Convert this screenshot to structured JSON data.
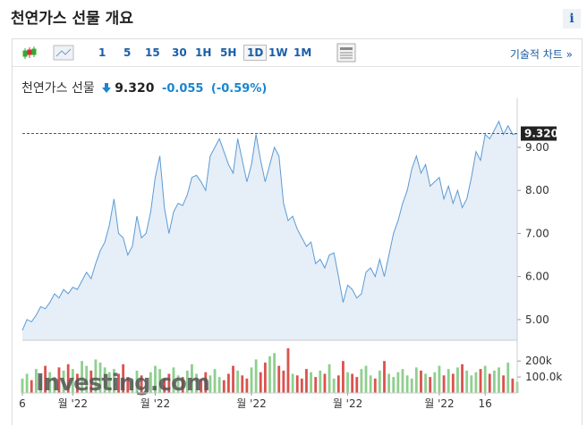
{
  "header": {
    "title": "천연가스 선물 개요",
    "info": "i"
  },
  "toolbar": {
    "intervals": [
      "1",
      "5",
      "15",
      "30",
      "1H",
      "5H",
      "1D",
      "1W",
      "1M"
    ],
    "active": "1D",
    "link": "기술적 차트 »"
  },
  "quote": {
    "name": "천연가스 선물",
    "price": "9.320",
    "change": "-0.055",
    "change_percent": "(-0.59%)"
  },
  "chart_data": {
    "type": "area",
    "color": "#5b9bd5",
    "fill": "#e6eef7",
    "values": [
      4.75,
      5.0,
      4.95,
      5.1,
      5.3,
      5.25,
      5.4,
      5.6,
      5.5,
      5.7,
      5.6,
      5.75,
      5.7,
      5.9,
      6.1,
      5.95,
      6.3,
      6.6,
      6.8,
      7.2,
      7.8,
      7.0,
      6.9,
      6.5,
      6.7,
      7.4,
      6.9,
      7.0,
      7.5,
      8.3,
      8.8,
      7.6,
      7.0,
      7.5,
      7.7,
      7.65,
      7.9,
      8.3,
      8.35,
      8.2,
      8.0,
      8.8,
      9.0,
      9.2,
      8.9,
      8.6,
      8.4,
      9.2,
      8.7,
      8.2,
      8.6,
      9.3,
      8.7,
      8.2,
      8.6,
      9.0,
      8.8,
      7.7,
      7.3,
      7.4,
      7.1,
      6.9,
      6.7,
      6.8,
      6.3,
      6.4,
      6.2,
      6.5,
      6.55,
      6.0,
      5.4,
      5.8,
      5.7,
      5.5,
      5.6,
      6.1,
      6.2,
      6.0,
      6.4,
      6.0,
      6.5,
      7.0,
      7.3,
      7.7,
      8.0,
      8.5,
      8.8,
      8.4,
      8.6,
      8.1,
      8.2,
      8.3,
      7.8,
      8.1,
      7.7,
      8.0,
      7.6,
      7.8,
      8.3,
      8.9,
      8.7,
      9.3,
      9.2,
      9.4,
      9.6,
      9.3,
      9.5,
      9.3,
      9.32
    ],
    "xlim": [
      0,
      108
    ],
    "xticks": [
      {
        "value": 0,
        "label": "6"
      },
      {
        "value": 11,
        "label": "월 '22"
      },
      {
        "value": 29,
        "label": "월 '22"
      },
      {
        "value": 50,
        "label": "월 '22"
      },
      {
        "value": 71,
        "label": "월 '22"
      },
      {
        "value": 91,
        "label": "월 '22"
      },
      {
        "value": 101,
        "label": "16"
      }
    ],
    "ylim": [
      4.52,
      10.14
    ],
    "yticks": [
      {
        "value": 5,
        "label": "5.00"
      },
      {
        "value": 6,
        "label": "6.00"
      },
      {
        "value": 7,
        "label": "7.00"
      },
      {
        "value": 8,
        "label": "8.00"
      },
      {
        "value": 9,
        "label": "9.00"
      }
    ],
    "last_price": {
      "value": 9.32,
      "label": "9.320"
    },
    "volume": {
      "values": [
        90000,
        120000,
        80000,
        150000,
        110000,
        170000,
        130000,
        100000,
        160000,
        140000,
        180000,
        150000,
        120000,
        200000,
        170000,
        140000,
        210000,
        190000,
        160000,
        130000,
        150000,
        120000,
        180000,
        100000,
        90000,
        140000,
        110000,
        80000,
        130000,
        170000,
        150000,
        90000,
        120000,
        160000,
        110000,
        100000,
        140000,
        180000,
        120000,
        90000,
        130000,
        110000,
        150000,
        100000,
        80000,
        120000,
        170000,
        140000,
        110000,
        90000,
        160000,
        210000,
        130000,
        190000,
        230000,
        250000,
        170000,
        140000,
        280000,
        120000,
        110000,
        90000,
        150000,
        130000,
        100000,
        140000,
        120000,
        180000,
        90000,
        110000,
        200000,
        130000,
        120000,
        100000,
        150000,
        170000,
        110000,
        90000,
        140000,
        200000,
        120000,
        100000,
        130000,
        150000,
        110000,
        90000,
        160000,
        140000,
        120000,
        100000,
        130000,
        170000,
        110000,
        150000,
        120000,
        160000,
        180000,
        140000,
        110000,
        130000,
        150000,
        170000,
        120000,
        140000,
        160000,
        110000,
        190000,
        90000,
        70000
      ],
      "up_color": "#8fcf8f",
      "down_color": "#d9534f",
      "ylim": [
        0,
        330000
      ],
      "yticks": [
        {
          "value": 100000,
          "label": "100.0k"
        },
        {
          "value": 200000,
          "label": "200k"
        }
      ]
    },
    "watermark": "Investing.com"
  }
}
